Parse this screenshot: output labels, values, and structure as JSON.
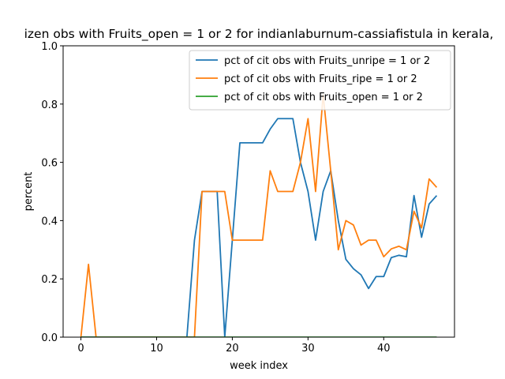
{
  "chart_data": {
    "type": "line",
    "title": "izen obs with Fruits_open = 1 or 2 for indianlaburnum-cassiafistula in kerala,",
    "xlabel": "week index",
    "ylabel": "percent",
    "xlim": [
      -2.35,
      49.35
    ],
    "ylim": [
      0,
      1.0
    ],
    "xticks": [
      0,
      10,
      20,
      30,
      40
    ],
    "yticks": [
      0.0,
      0.2,
      0.4,
      0.6,
      0.8,
      1.0
    ],
    "ytick_labels": [
      "0.0",
      "0.2",
      "0.4",
      "0.6",
      "0.8",
      "1.0"
    ],
    "legend_position": "top-right",
    "x": [
      0,
      1,
      2,
      3,
      4,
      5,
      6,
      7,
      8,
      9,
      10,
      11,
      12,
      13,
      14,
      15,
      16,
      17,
      18,
      19,
      20,
      21,
      22,
      23,
      24,
      25,
      26,
      27,
      28,
      29,
      30,
      31,
      32,
      33,
      34,
      35,
      36,
      37,
      38,
      39,
      40,
      41,
      42,
      43,
      44,
      45,
      46,
      47
    ],
    "series": [
      {
        "name": "pct of cit obs with Fruits_unripe = 1 or 2",
        "color": "#1f77b4",
        "values": [
          0,
          0,
          0,
          0,
          0,
          0,
          0,
          0,
          0,
          0,
          0,
          0,
          0,
          0,
          0,
          0.333,
          0.5,
          0.5,
          0.5,
          0,
          0.333,
          0.667,
          0.667,
          0.667,
          0.667,
          0.714,
          0.75,
          0.75,
          0.75,
          0.6,
          0.5,
          0.333,
          0.5,
          0.571,
          0.4,
          0.267,
          0.235,
          0.214,
          0.167,
          0.208,
          0.208,
          0.273,
          0.281,
          0.276,
          0.486,
          0.343,
          0.457,
          0.486
        ]
      },
      {
        "name": "pct of cit obs with Fruits_ripe = 1 or 2",
        "color": "#ff7f0e",
        "values": [
          0,
          0.25,
          0,
          0,
          0,
          0,
          0,
          0,
          0,
          0,
          0,
          0,
          0,
          0,
          0,
          0,
          0.5,
          0.5,
          0.5,
          0.5,
          0.333,
          0.333,
          0.333,
          0.333,
          0.333,
          0.571,
          0.5,
          0.5,
          0.5,
          0.6,
          0.75,
          0.5,
          0.833,
          0.571,
          0.3,
          0.4,
          0.385,
          0.316,
          0.333,
          0.333,
          0.276,
          0.303,
          0.312,
          0.3,
          0.432,
          0.375,
          0.543,
          0.514
        ]
      },
      {
        "name": "pct of cit obs with Fruits_open = 1 or 2",
        "color": "#2ca02c",
        "values": [
          0,
          0,
          0,
          0,
          0,
          0,
          0,
          0,
          0,
          0,
          0,
          0,
          0,
          0,
          0,
          0,
          0,
          0,
          0,
          0,
          0,
          0,
          0,
          0,
          0,
          0,
          0,
          0,
          0,
          0,
          0,
          0,
          0,
          0,
          0,
          0,
          0,
          0,
          0,
          0,
          0,
          0,
          0,
          0,
          0,
          0,
          0,
          0
        ]
      }
    ]
  }
}
